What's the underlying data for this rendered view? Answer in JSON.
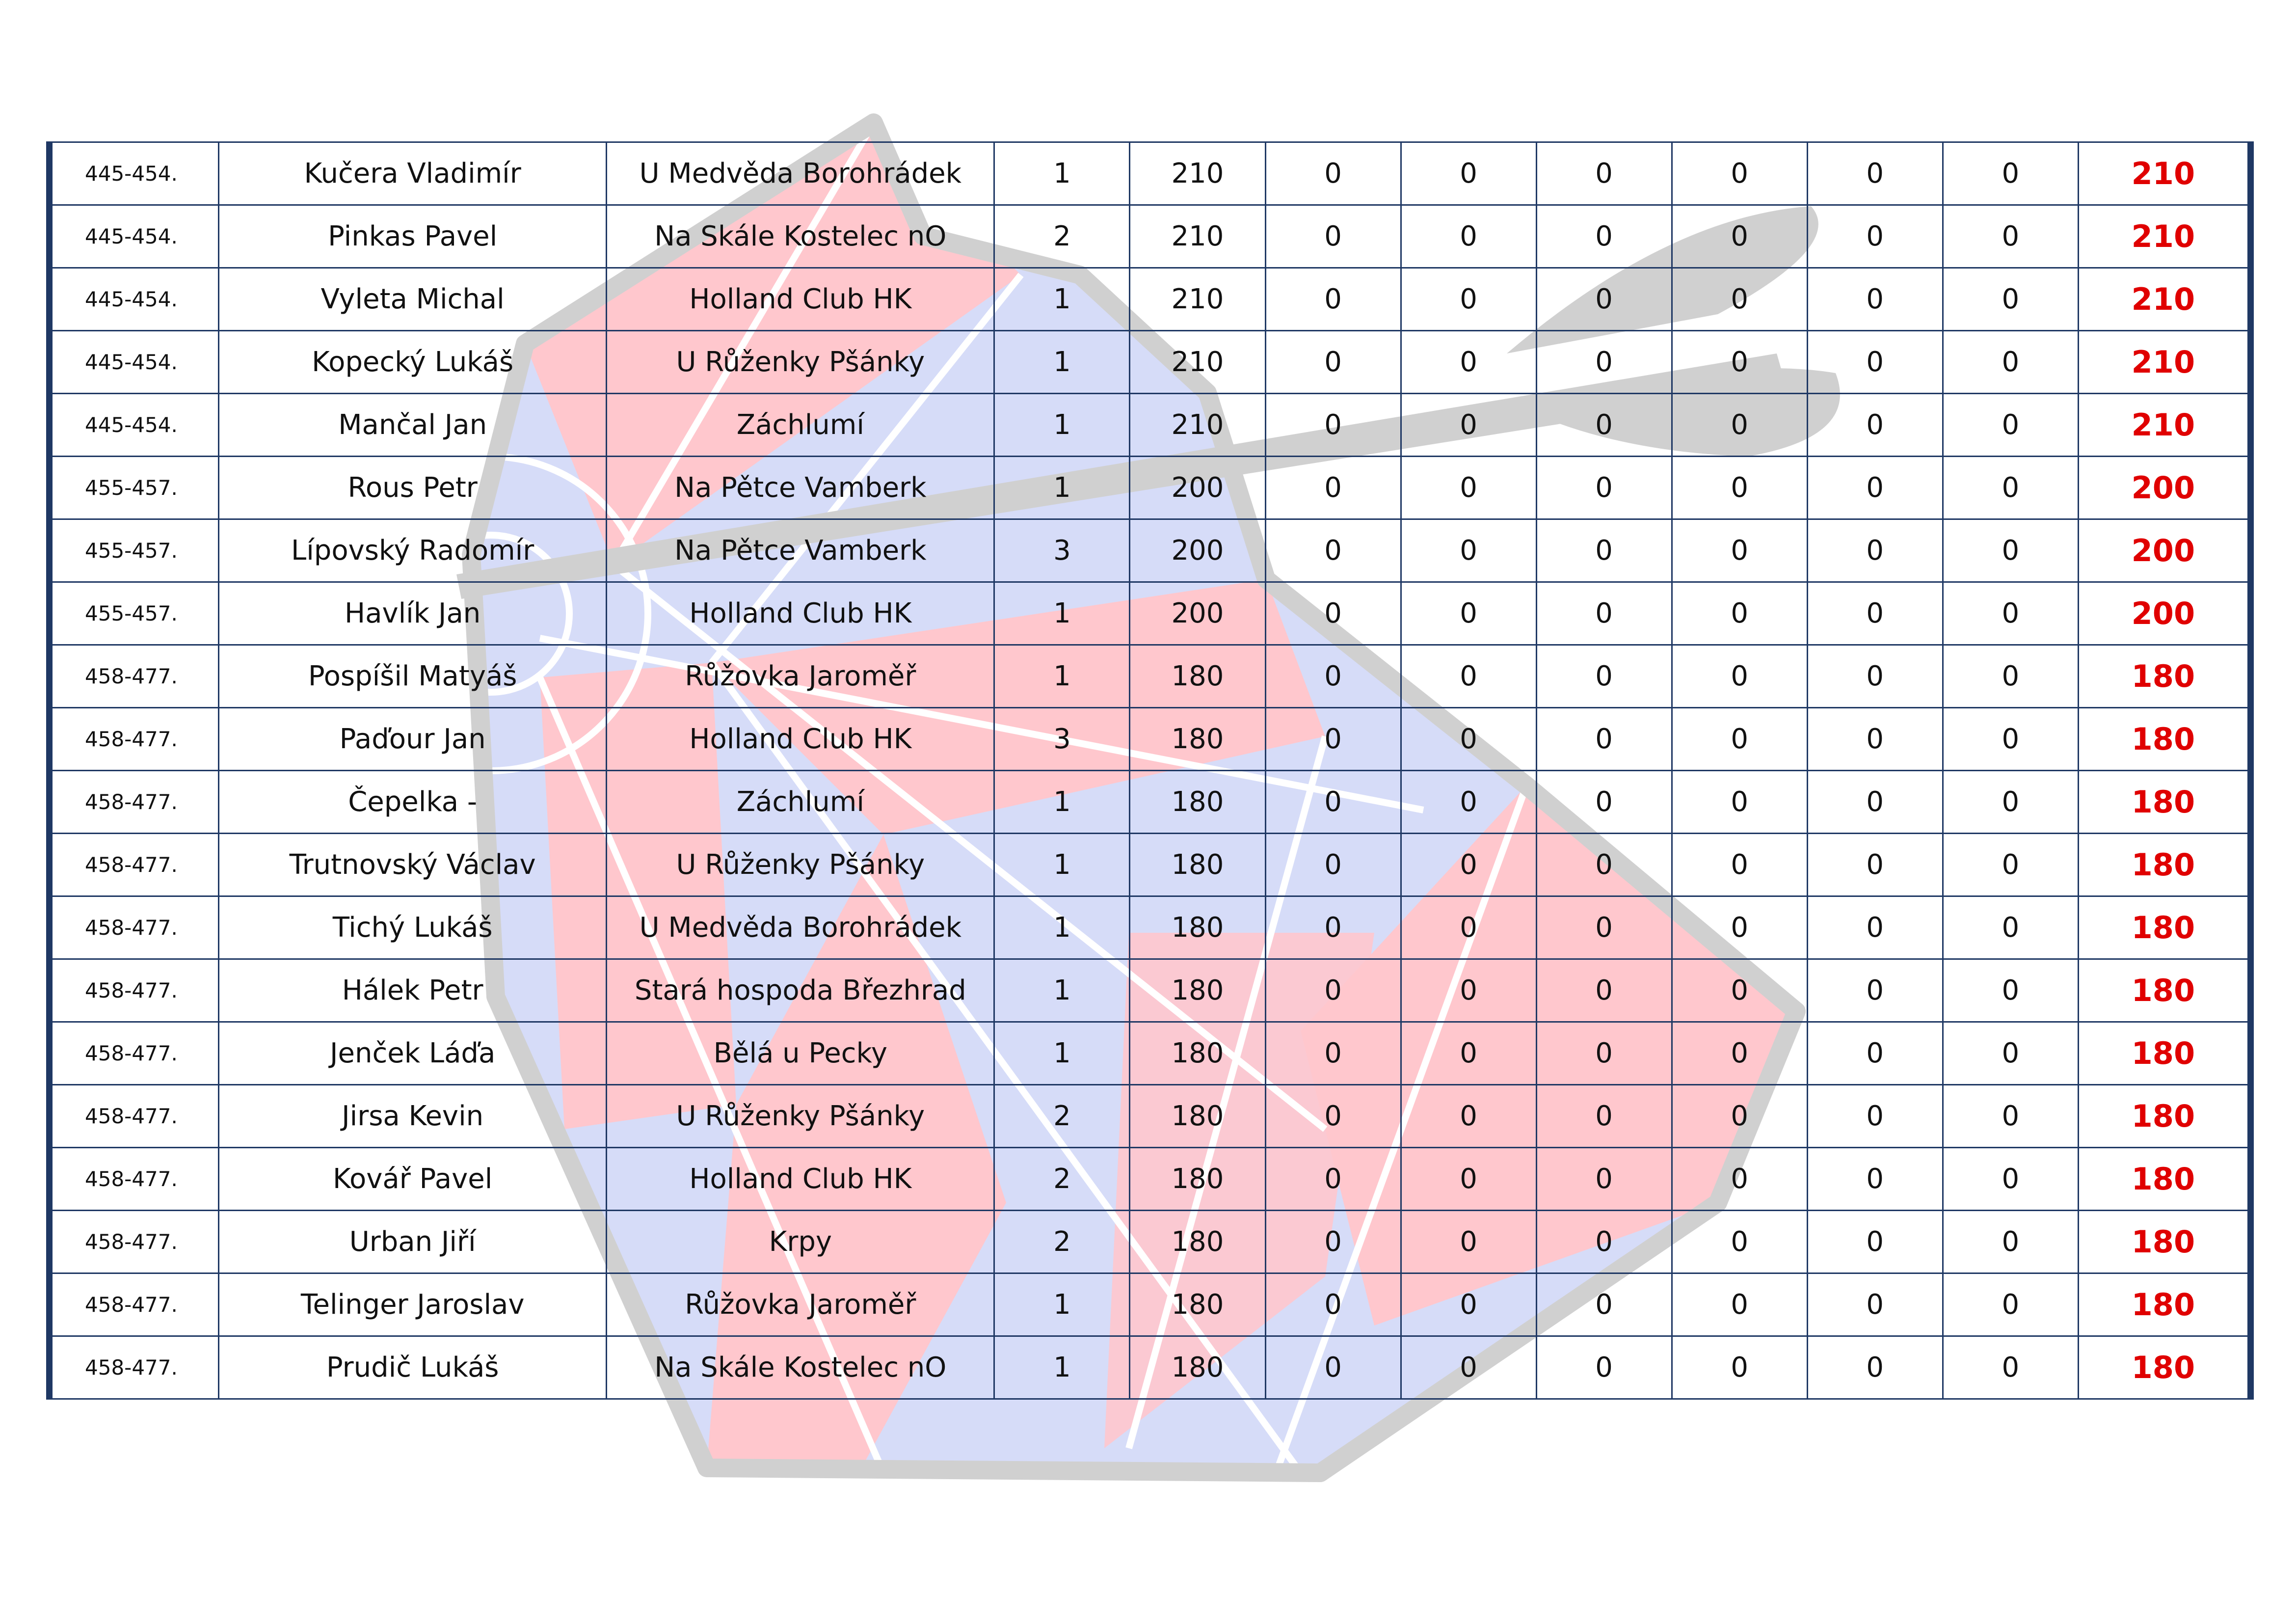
{
  "colors": {
    "border": "#1f3864",
    "total_text": "#e00000",
    "watermark_red": "#ffc7cd",
    "watermark_blue": "#d6dcf8",
    "watermark_gray": "#d0d0d0"
  },
  "watermark": {
    "icon": "dartboard-with-dart-icon"
  },
  "rows": [
    {
      "rank": "445-454.",
      "name": "Kučera Vladimír",
      "club": "U Medvěda Borohrádek",
      "c1": "1",
      "c2": "210",
      "c3": "0",
      "c4": "0",
      "c5": "0",
      "c6": "0",
      "c7": "0",
      "c8": "0",
      "total": "210"
    },
    {
      "rank": "445-454.",
      "name": "Pinkas Pavel",
      "club": "Na Skále Kostelec nO",
      "c1": "2",
      "c2": "210",
      "c3": "0",
      "c4": "0",
      "c5": "0",
      "c6": "0",
      "c7": "0",
      "c8": "0",
      "total": "210"
    },
    {
      "rank": "445-454.",
      "name": "Vyleta Michal",
      "club": "Holland Club HK",
      "c1": "1",
      "c2": "210",
      "c3": "0",
      "c4": "0",
      "c5": "0",
      "c6": "0",
      "c7": "0",
      "c8": "0",
      "total": "210"
    },
    {
      "rank": "445-454.",
      "name": "Kopecký Lukáš",
      "club": "U Růženky Pšánky",
      "c1": "1",
      "c2": "210",
      "c3": "0",
      "c4": "0",
      "c5": "0",
      "c6": "0",
      "c7": "0",
      "c8": "0",
      "total": "210"
    },
    {
      "rank": "445-454.",
      "name": "Mančal Jan",
      "club": "Záchlumí",
      "c1": "1",
      "c2": "210",
      "c3": "0",
      "c4": "0",
      "c5": "0",
      "c6": "0",
      "c7": "0",
      "c8": "0",
      "total": "210"
    },
    {
      "rank": "455-457.",
      "name": "Rous Petr",
      "club": "Na Pětce Vamberk",
      "c1": "1",
      "c2": "200",
      "c3": "0",
      "c4": "0",
      "c5": "0",
      "c6": "0",
      "c7": "0",
      "c8": "0",
      "total": "200"
    },
    {
      "rank": "455-457.",
      "name": "Lípovský Radomír",
      "club": "Na Pětce Vamberk",
      "c1": "3",
      "c2": "200",
      "c3": "0",
      "c4": "0",
      "c5": "0",
      "c6": "0",
      "c7": "0",
      "c8": "0",
      "total": "200"
    },
    {
      "rank": "455-457.",
      "name": "Havlík Jan",
      "club": "Holland Club HK",
      "c1": "1",
      "c2": "200",
      "c3": "0",
      "c4": "0",
      "c5": "0",
      "c6": "0",
      "c7": "0",
      "c8": "0",
      "total": "200"
    },
    {
      "rank": "458-477.",
      "name": "Pospíšil Matyáš",
      "club": "Růžovka Jaroměř",
      "c1": "1",
      "c2": "180",
      "c3": "0",
      "c4": "0",
      "c5": "0",
      "c6": "0",
      "c7": "0",
      "c8": "0",
      "total": "180"
    },
    {
      "rank": "458-477.",
      "name": "Paďour Jan",
      "club": "Holland Club HK",
      "c1": "3",
      "c2": "180",
      "c3": "0",
      "c4": "0",
      "c5": "0",
      "c6": "0",
      "c7": "0",
      "c8": "0",
      "total": "180"
    },
    {
      "rank": "458-477.",
      "name": "Čepelka -",
      "club": "Záchlumí",
      "c1": "1",
      "c2": "180",
      "c3": "0",
      "c4": "0",
      "c5": "0",
      "c6": "0",
      "c7": "0",
      "c8": "0",
      "total": "180"
    },
    {
      "rank": "458-477.",
      "name": "Trutnovský Václav",
      "club": "U Růženky Pšánky",
      "c1": "1",
      "c2": "180",
      "c3": "0",
      "c4": "0",
      "c5": "0",
      "c6": "0",
      "c7": "0",
      "c8": "0",
      "total": "180"
    },
    {
      "rank": "458-477.",
      "name": "Tichý Lukáš",
      "club": "U Medvěda Borohrádek",
      "c1": "1",
      "c2": "180",
      "c3": "0",
      "c4": "0",
      "c5": "0",
      "c6": "0",
      "c7": "0",
      "c8": "0",
      "total": "180"
    },
    {
      "rank": "458-477.",
      "name": "Hálek Petr",
      "club": "Stará hospoda Březhrad",
      "c1": "1",
      "c2": "180",
      "c3": "0",
      "c4": "0",
      "c5": "0",
      "c6": "0",
      "c7": "0",
      "c8": "0",
      "total": "180"
    },
    {
      "rank": "458-477.",
      "name": "Jenček Láďa",
      "club": "Bělá u Pecky",
      "c1": "1",
      "c2": "180",
      "c3": "0",
      "c4": "0",
      "c5": "0",
      "c6": "0",
      "c7": "0",
      "c8": "0",
      "total": "180"
    },
    {
      "rank": "458-477.",
      "name": "Jirsa Kevin",
      "club": "U Růženky Pšánky",
      "c1": "2",
      "c2": "180",
      "c3": "0",
      "c4": "0",
      "c5": "0",
      "c6": "0",
      "c7": "0",
      "c8": "0",
      "total": "180"
    },
    {
      "rank": "458-477.",
      "name": "Kovář Pavel",
      "club": "Holland Club HK",
      "c1": "2",
      "c2": "180",
      "c3": "0",
      "c4": "0",
      "c5": "0",
      "c6": "0",
      "c7": "0",
      "c8": "0",
      "total": "180"
    },
    {
      "rank": "458-477.",
      "name": "Urban Jiří",
      "club": "Krpy",
      "c1": "2",
      "c2": "180",
      "c3": "0",
      "c4": "0",
      "c5": "0",
      "c6": "0",
      "c7": "0",
      "c8": "0",
      "total": "180"
    },
    {
      "rank": "458-477.",
      "name": "Telinger Jaroslav",
      "club": "Růžovka Jaroměř",
      "c1": "1",
      "c2": "180",
      "c3": "0",
      "c4": "0",
      "c5": "0",
      "c6": "0",
      "c7": "0",
      "c8": "0",
      "total": "180"
    },
    {
      "rank": "458-477.",
      "name": "Prudič Lukáš",
      "club": "Na Skále Kostelec nO",
      "c1": "1",
      "c2": "180",
      "c3": "0",
      "c4": "0",
      "c5": "0",
      "c6": "0",
      "c7": "0",
      "c8": "0",
      "total": "180"
    }
  ]
}
